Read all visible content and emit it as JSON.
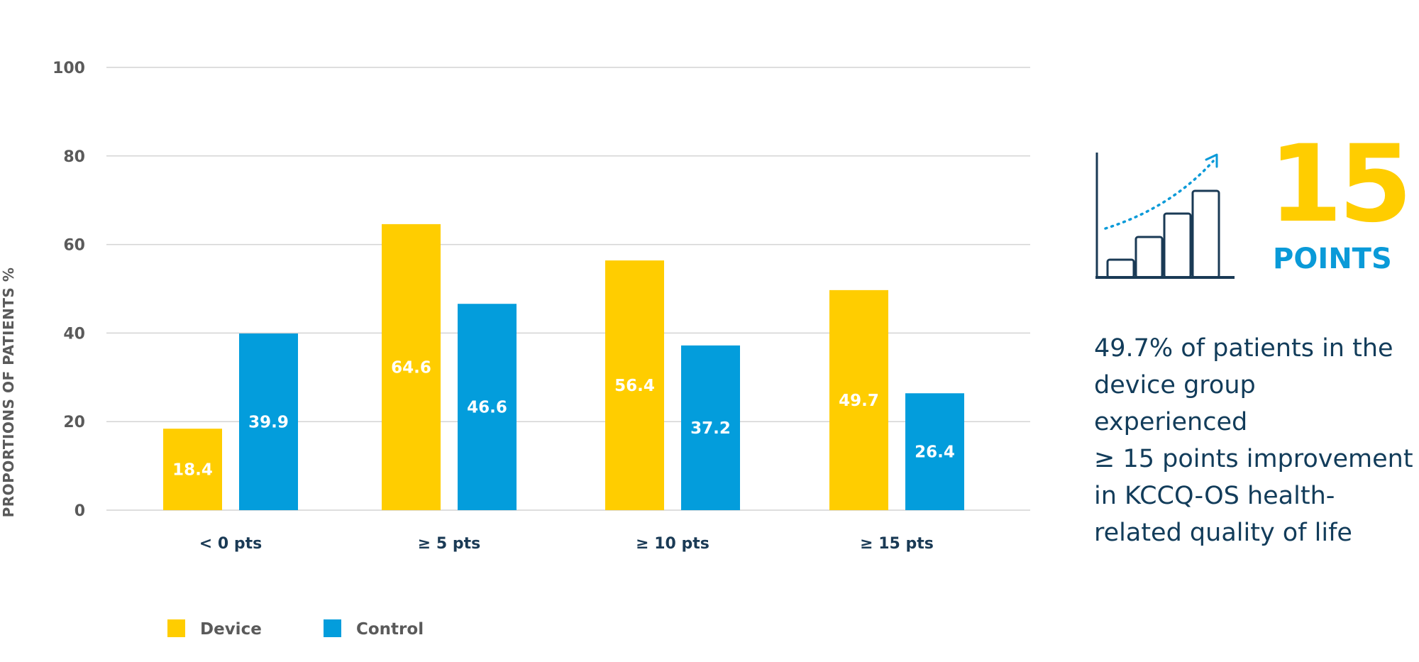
{
  "chart_data": {
    "type": "bar",
    "title": "",
    "xlabel": "",
    "ylabel": "PROPORTIONS OF PATIENTS %",
    "ylim": [
      0,
      100
    ],
    "yticks": [
      "0",
      "20",
      "40",
      "60",
      "80",
      "100"
    ],
    "grid": true,
    "legend_position": "bottom-left",
    "categories": [
      "< 0 pts",
      "≥ 5 pts",
      "≥ 10 pts",
      "≥ 15 pts"
    ],
    "series": [
      {
        "name": "Device",
        "color": "#ffcd00",
        "values": [
          18.4,
          64.6,
          56.4,
          49.7
        ],
        "labels": [
          "18.4",
          "64.6",
          "56.4",
          "49.7"
        ]
      },
      {
        "name": "Control",
        "color": "#039ddc",
        "values": [
          39.9,
          46.6,
          37.2,
          26.4
        ],
        "labels": [
          "39.9",
          "46.6",
          "37.2",
          "26.4"
        ]
      }
    ]
  },
  "callout": {
    "icon": "bar-growth-icon",
    "number": "15",
    "unit": "POINTS",
    "text": "49.7% of patients in the\ndevice group experienced\n ≥ 15 points improvement\nin KCCQ-OS health-\nrelated quality of life",
    "number_color": "#ffcd00",
    "unit_color": "#0a9ad8",
    "text_color": "#123c5a"
  }
}
